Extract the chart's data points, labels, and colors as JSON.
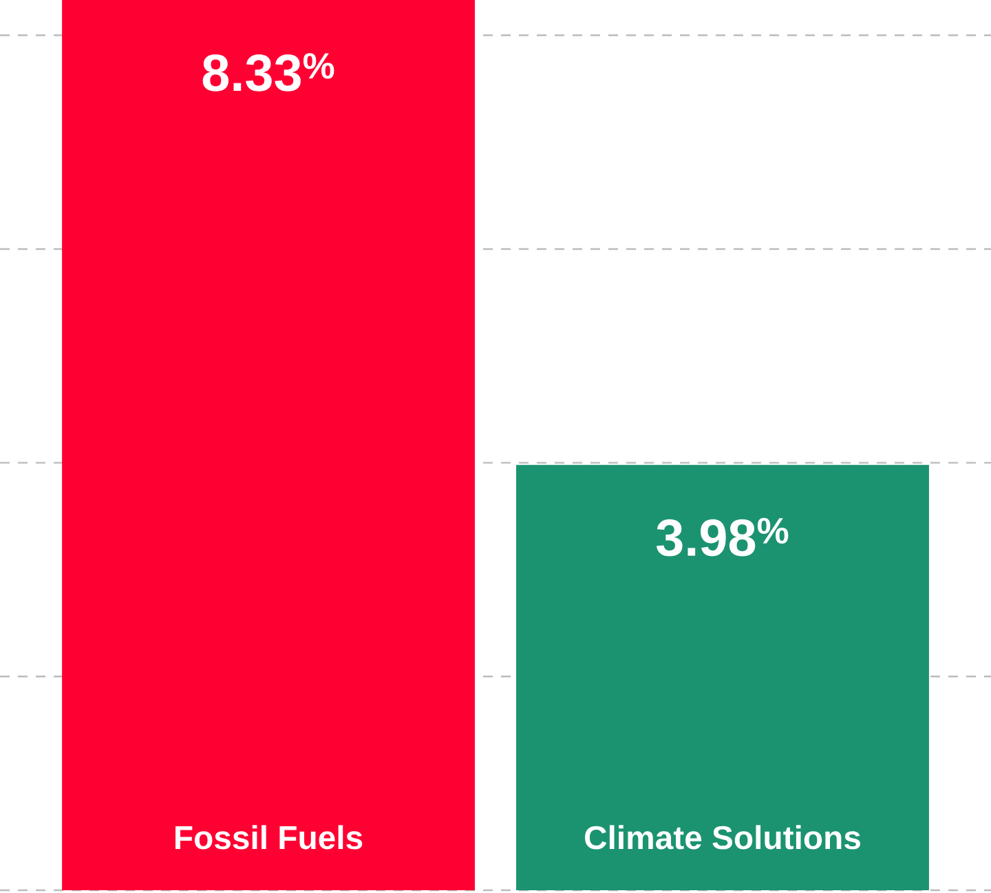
{
  "chart_data": {
    "type": "bar",
    "categories": [
      "Fossil Fuels",
      "Climate Solutions"
    ],
    "values": [
      8.33,
      3.98
    ],
    "colors": [
      "#ff0033",
      "#1b9370"
    ],
    "value_labels": [
      "8.33$^{%}$",
      "3.98$^{%}$"
    ],
    "yticks": [
      {
        "value": 0,
        "label": null
      },
      {
        "value": 2,
        "label": null
      },
      {
        "value": 4,
        "label": null
      },
      {
        "value": 6,
        "label": null
      },
      {
        "value": 8,
        "label": null
      }
    ],
    "grid": "y",
    "tick_labels": "x"
  }
}
